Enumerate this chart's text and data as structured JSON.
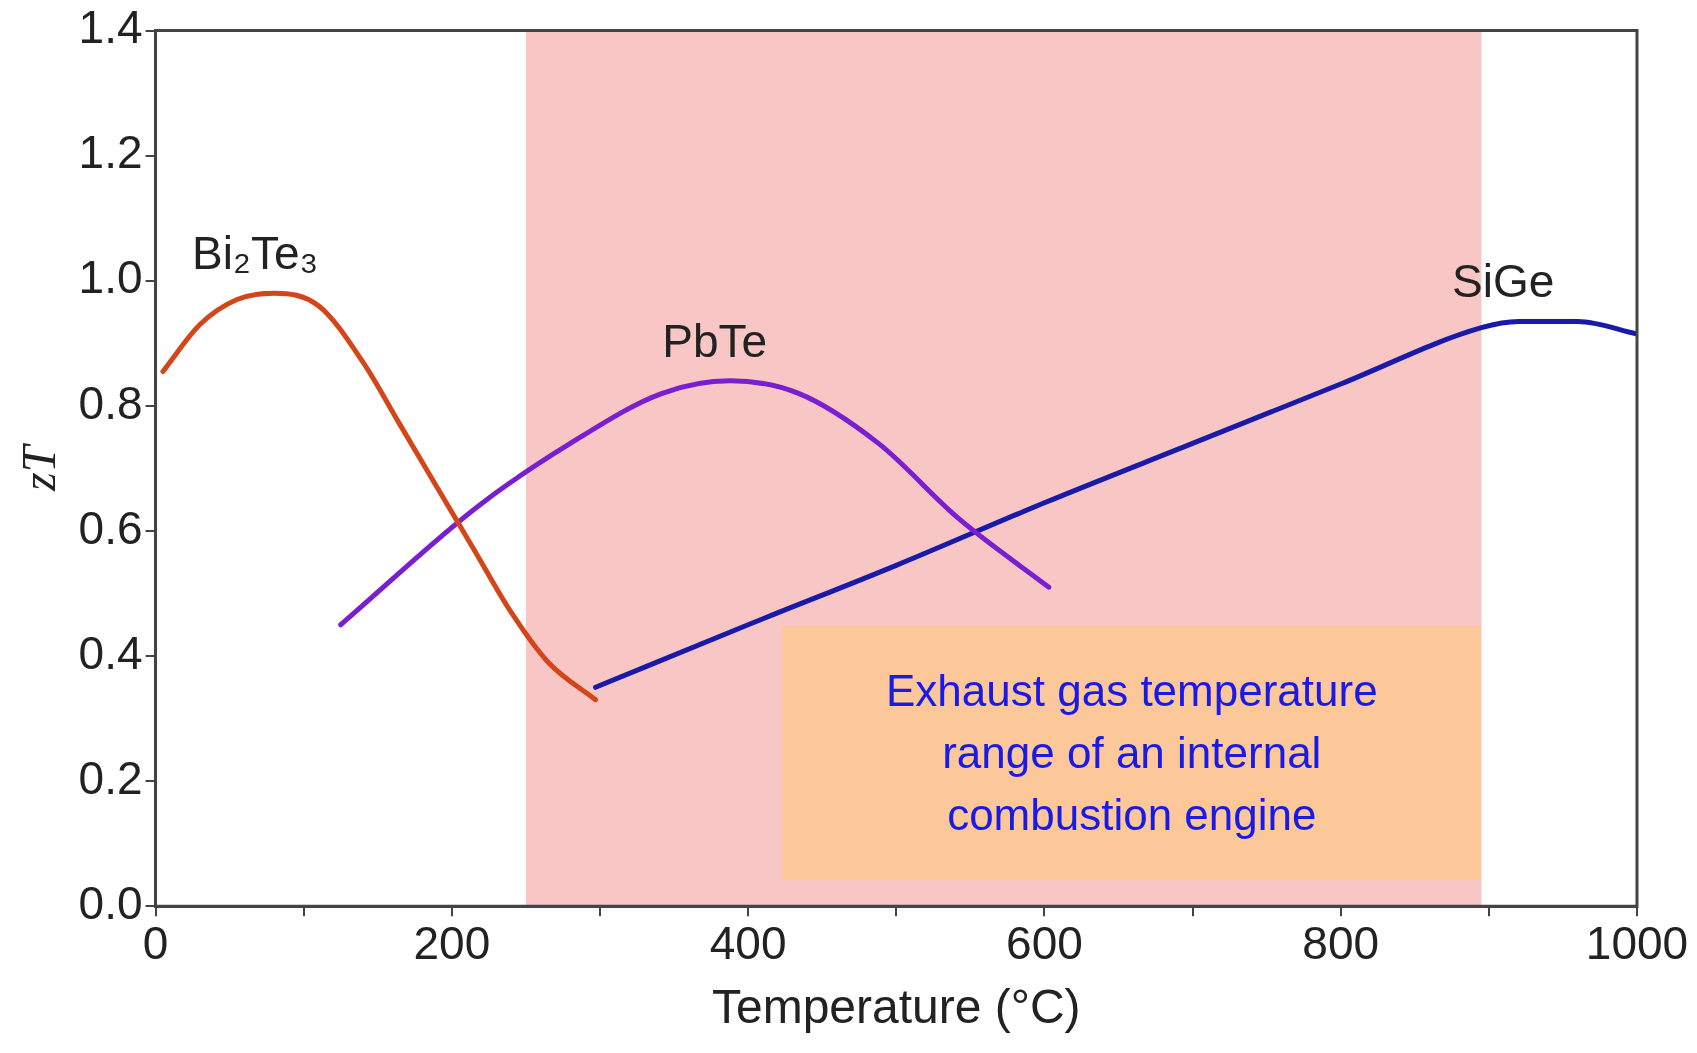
{
  "chart_data": {
    "type": "line",
    "xlabel": "Temperature (°C)",
    "ylabel": "zT",
    "xlim": [
      0,
      1000
    ],
    "ylim": [
      0,
      1.4
    ],
    "xticks": [
      0,
      {
        "value": 100,
        "label": null
      },
      200,
      {
        "value": 300,
        "label": null
      },
      400,
      {
        "value": 500,
        "label": null
      },
      600,
      {
        "value": 700,
        "label": null
      },
      800,
      {
        "value": 900,
        "label": null
      },
      1000
    ],
    "yticks": [
      {
        "value": 0,
        "label": "0.0"
      },
      {
        "value": 0.2,
        "label": "0.2"
      },
      {
        "value": 0.4,
        "label": "0.4"
      },
      {
        "value": 0.6,
        "label": "0.6"
      },
      {
        "value": 0.8,
        "label": "0.8"
      },
      {
        "value": 1,
        "label": "1.0"
      },
      {
        "value": 1.2,
        "label": "1.2"
      },
      {
        "value": 1.4,
        "label": "1.4"
      }
    ],
    "grid": false,
    "legend": false,
    "marker": "none",
    "line_style": "solid",
    "series": [
      {
        "name": "Bi₂Te₃",
        "color": "#d2461a",
        "x": [
          5,
          30,
          55,
          80,
          110,
          140,
          165,
          190,
          215,
          240,
          265,
          297
        ],
        "values": [
          0.855,
          0.93,
          0.97,
          0.98,
          0.96,
          0.87,
          0.77,
          0.67,
          0.57,
          0.47,
          0.39,
          0.33
        ]
      },
      {
        "name": "PbTe",
        "color": "#7a1fd0",
        "x": [
          125,
          218,
          280,
          342,
          388,
          434,
          488,
          542,
          603
        ],
        "values": [
          0.45,
          0.64,
          0.74,
          0.82,
          0.84,
          0.82,
          0.74,
          0.62,
          0.51
        ]
      },
      {
        "name": "SiGe",
        "color": "#1a1aa8",
        "x": [
          297,
          400,
          500,
          600,
          700,
          800,
          895,
          920,
          960,
          1000
        ],
        "values": [
          0.35,
          0.45,
          0.545,
          0.645,
          0.74,
          0.835,
          0.925,
          0.935,
          0.935,
          0.915
        ]
      }
    ],
    "bands": [
      {
        "axis": "x",
        "from": 250,
        "to": 895,
        "color": "#f9c6c6"
      }
    ],
    "annotations": [
      "Exhaust gas temperature range of an internal combustion engine"
    ]
  }
}
